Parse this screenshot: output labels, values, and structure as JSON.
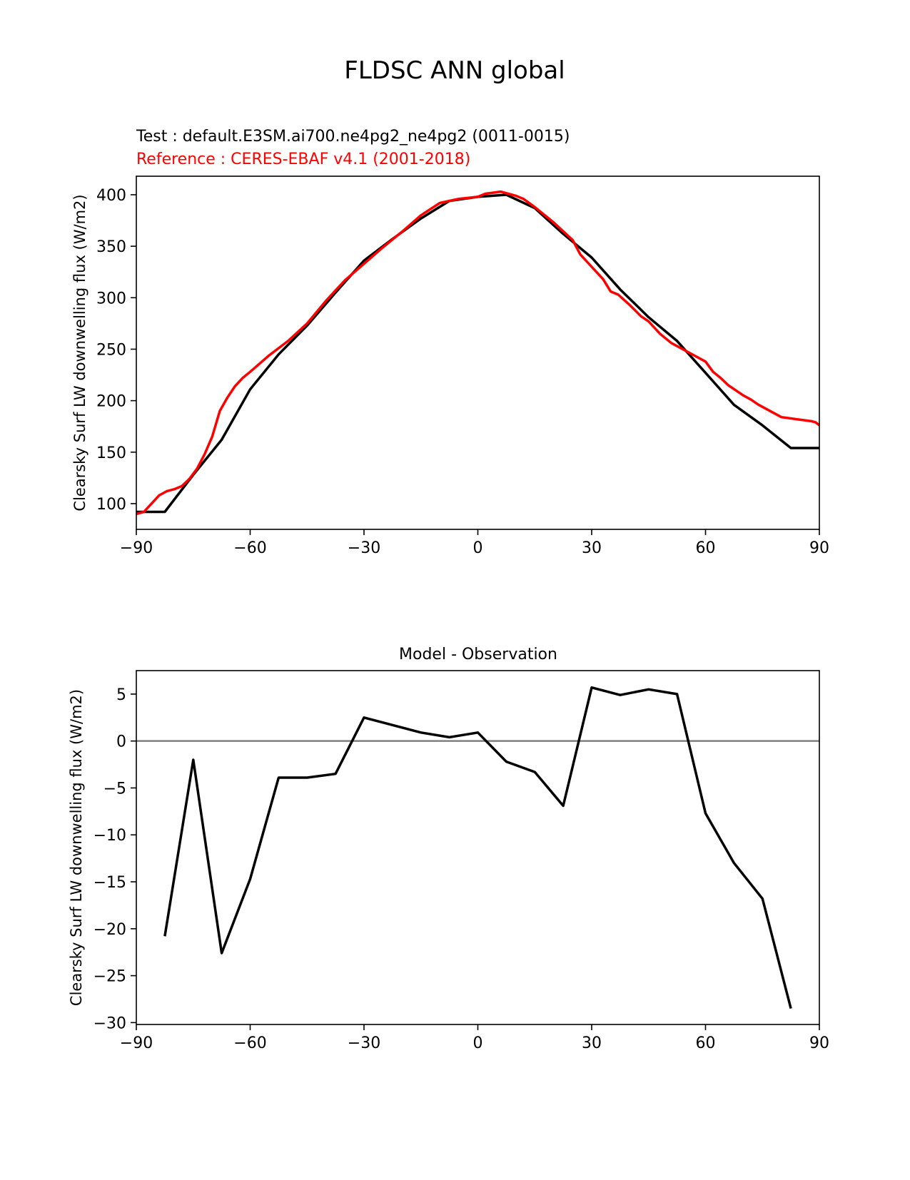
{
  "figure_title": "FLDSC ANN global",
  "chart_data": [
    {
      "type": "line",
      "title_test": "Test : default.E3SM.ai700.ne4pg2_ne4pg2 (0011-0015)",
      "title_reference": "Reference : CERES-EBAF v4.1 (2001-2018)",
      "xlabel": "",
      "ylabel": "Clearsky Surf LW downwelling flux (W/m2)",
      "xlim": [
        -90,
        90
      ],
      "ylim": [
        75,
        418
      ],
      "xticks": [
        -90,
        -60,
        -30,
        0,
        30,
        60,
        90
      ],
      "xtick_labels": [
        "−90",
        "−60",
        "−30",
        "0",
        "30",
        "60",
        "90"
      ],
      "yticks": [
        100,
        150,
        200,
        250,
        300,
        350,
        400
      ],
      "ytick_labels": [
        "100",
        "150",
        "200",
        "250",
        "300",
        "350",
        "400"
      ],
      "grid": false,
      "series": [
        {
          "color": "#000000",
          "x": [
            -90,
            -82.5,
            -75,
            -67.5,
            -60,
            -52.5,
            -45,
            -37.5,
            -30,
            -22.5,
            -15,
            -7.5,
            0,
            7.5,
            15,
            22.5,
            30,
            37.5,
            45,
            52.5,
            60,
            67.5,
            75,
            82.5,
            90
          ],
          "y": [
            92,
            92,
            128,
            162,
            211,
            245,
            273,
            305,
            336,
            357,
            377,
            394,
            398,
            400,
            387,
            362,
            339,
            308,
            281,
            258,
            227,
            196,
            176,
            154,
            154
          ]
        },
        {
          "color": "#ff0000",
          "x": [
            -90,
            -88,
            -86,
            -84,
            -82,
            -80,
            -78,
            -76,
            -74,
            -72,
            -70,
            -68,
            -66,
            -64,
            -62,
            -60,
            -55,
            -50,
            -45,
            -40,
            -35,
            -30,
            -25,
            -20,
            -15,
            -10,
            -5,
            0,
            2,
            4,
            6,
            8,
            10,
            12,
            15,
            20,
            25,
            27,
            30,
            33,
            35,
            37,
            40,
            43,
            45,
            48,
            51,
            54,
            57,
            60,
            62,
            64,
            66,
            68,
            70,
            72,
            74,
            76,
            78,
            80,
            82,
            84,
            86,
            88,
            89,
            90
          ],
          "y": [
            90,
            92,
            100,
            108,
            112,
            114,
            117,
            124,
            134,
            148,
            165,
            190,
            203,
            214,
            222,
            228,
            244,
            258,
            275,
            297,
            317,
            333,
            349,
            364,
            380,
            392,
            396,
            398,
            401,
            402,
            403,
            401,
            399,
            396,
            388,
            373,
            356,
            342,
            330,
            318,
            306,
            303,
            293,
            282,
            277,
            265,
            256,
            250,
            244,
            238,
            228,
            222,
            215,
            210,
            205,
            201,
            196,
            192,
            188,
            184,
            183,
            182,
            181,
            180,
            179,
            176
          ]
        }
      ]
    },
    {
      "type": "line",
      "title": "Model - Observation",
      "xlabel": "",
      "ylabel": "Clearsky Surf LW downwelling flux (W/m2)",
      "xlim": [
        -90,
        90
      ],
      "ylim": [
        -30.2,
        7.5
      ],
      "xticks": [
        -90,
        -60,
        -30,
        0,
        30,
        60,
        90
      ],
      "xtick_labels": [
        "−90",
        "−60",
        "−30",
        "0",
        "30",
        "60",
        "90"
      ],
      "yticks": [
        5,
        0,
        -5,
        -10,
        -15,
        -20,
        -25,
        -30
      ],
      "ytick_labels": [
        "5",
        "0",
        "−5",
        "−10",
        "−15",
        "−20",
        "−25",
        "−30"
      ],
      "grid": false,
      "zero_line": {
        "y": 0,
        "color": "#808080"
      },
      "series": [
        {
          "color": "#000000",
          "x": [
            -82.5,
            -75,
            -67.5,
            -60,
            -52.5,
            -45,
            -37.5,
            -30,
            -22.5,
            -15,
            -7.5,
            0,
            7.5,
            15,
            22.5,
            30,
            37.5,
            45,
            52.5,
            60,
            67.5,
            75,
            82.5
          ],
          "y": [
            -20.8,
            -2.0,
            -22.6,
            -14.7,
            -3.9,
            -3.9,
            -3.5,
            2.5,
            1.7,
            0.9,
            0.4,
            0.9,
            -2.2,
            -3.3,
            -6.9,
            5.7,
            4.9,
            5.5,
            5.0,
            -7.7,
            -13.0,
            -16.8,
            -28.5
          ]
        }
      ]
    }
  ]
}
